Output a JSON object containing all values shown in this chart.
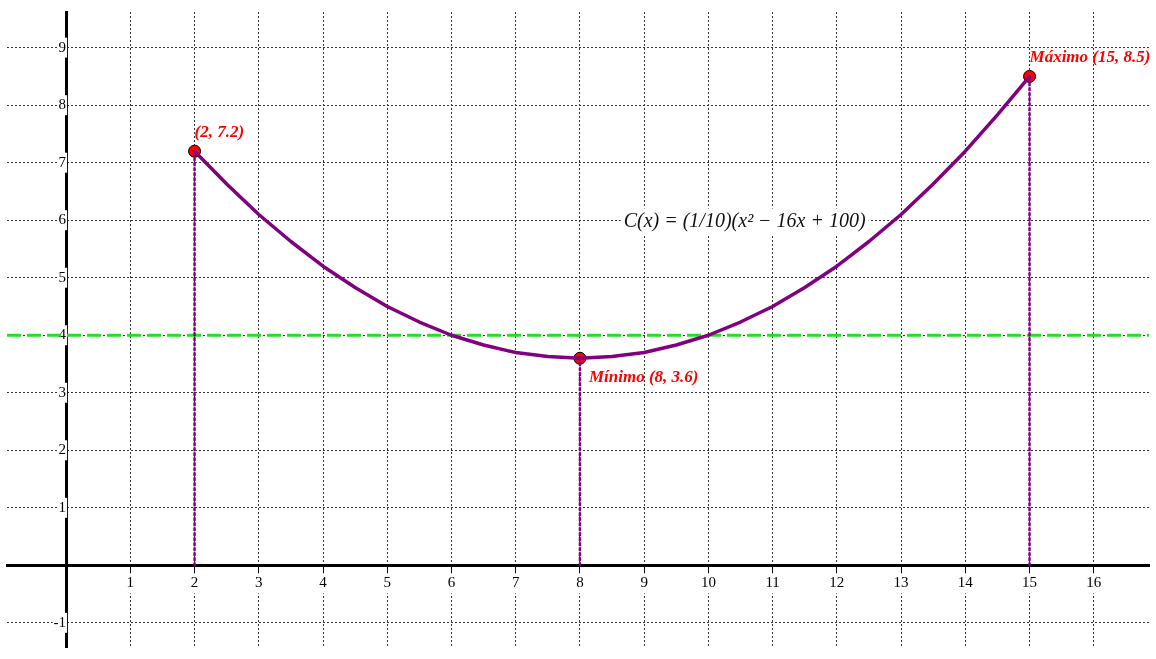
{
  "chart_data": {
    "type": "line",
    "xlim": [
      -0.92,
      16.86
    ],
    "ylim": [
      -1.42,
      9.62
    ],
    "xticks": [
      {
        "value": 0,
        "label": null
      },
      1,
      2,
      3,
      4,
      5,
      6,
      7,
      8,
      9,
      10,
      11,
      12,
      13,
      14,
      15,
      16
    ],
    "yticks": [
      -1,
      {
        "value": 0,
        "label": null
      },
      1,
      2,
      3,
      4,
      5,
      6,
      7,
      8,
      9
    ],
    "grid": true,
    "legend": false,
    "series": [
      {
        "type": "line",
        "color": "#800080",
        "marker": "none",
        "line_style": "solid",
        "x": [
          2,
          2.5,
          3,
          3.5,
          4,
          4.5,
          5,
          5.5,
          6,
          6.5,
          7,
          7.5,
          8,
          8.5,
          9,
          9.5,
          10,
          10.5,
          11,
          11.5,
          12,
          12.5,
          13,
          13.5,
          14,
          14.5,
          15
        ],
        "values": [
          7.2,
          6.63,
          6.1,
          5.63,
          5.2,
          4.83,
          4.5,
          4.23,
          4.0,
          3.83,
          3.7,
          3.63,
          3.6,
          3.63,
          3.7,
          3.83,
          4.0,
          4.23,
          4.5,
          4.83,
          5.2,
          5.63,
          6.1,
          6.63,
          7.2,
          7.83,
          8.5
        ]
      },
      {
        "type": "line",
        "color": "#800080",
        "marker": "none",
        "line_style": "dotted",
        "x": [
          2,
          2
        ],
        "values": [
          0,
          7.2
        ]
      },
      {
        "type": "line",
        "color": "#800080",
        "marker": "none",
        "line_style": "dotted",
        "x": [
          8,
          8
        ],
        "values": [
          0,
          3.6
        ]
      },
      {
        "type": "line",
        "color": "#800080",
        "marker": "none",
        "line_style": "dotted",
        "x": [
          15,
          15
        ],
        "values": [
          0,
          8.5
        ]
      },
      {
        "type": "scatter",
        "color": "#ff0000",
        "marker": "circle",
        "x": [
          2,
          8,
          15
        ],
        "values": [
          7.2,
          3.6,
          8.5
        ]
      }
    ],
    "ref_lines": [
      {
        "axis": "y",
        "value": 4,
        "color": "#22e022",
        "line_style": "dashed"
      }
    ],
    "annotations": [
      {
        "text": "(2, 7.2)",
        "x": 2,
        "y": 7.2
      },
      {
        "text": "Mínimo (8, 3.6)",
        "x": 8,
        "y": 3.6
      },
      {
        "text": "Máximo (15, 8.5)",
        "x": 15,
        "y": 8.5
      },
      "C(x) = (1/10)(x² − 16x + 100)"
    ]
  }
}
